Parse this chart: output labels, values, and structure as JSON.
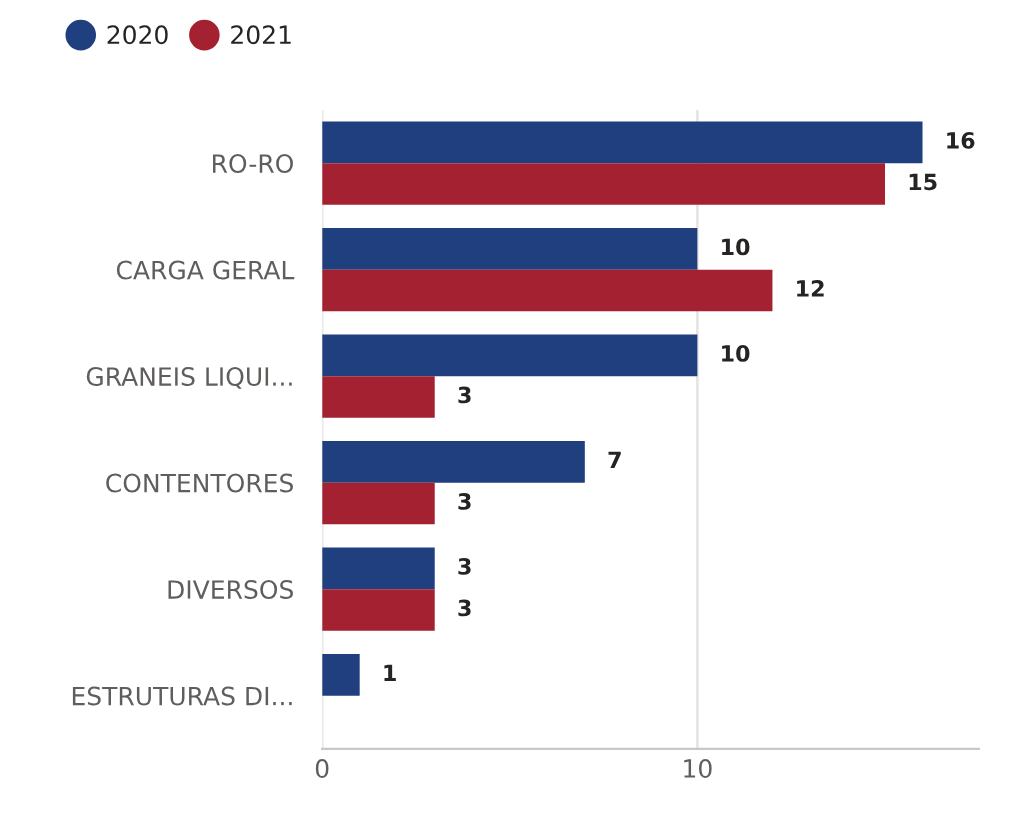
{
  "chart_data": {
    "type": "bar",
    "orientation": "horizontal",
    "categories": [
      "RO-RO",
      "CARGA GERAL",
      "GRANEIS LIQUI...",
      "CONTENTORES",
      "DIVERSOS",
      "ESTRUTURAS DI..."
    ],
    "series": [
      {
        "name": "2020",
        "color": "#203f7e",
        "values": [
          16,
          10,
          10,
          7,
          3,
          1
        ]
      },
      {
        "name": "2021",
        "color": "#a32130",
        "values": [
          15,
          12,
          3,
          3,
          3,
          null
        ]
      }
    ],
    "xlim": [
      0,
      17.5
    ],
    "xticks": [
      0,
      10
    ],
    "grid": "x",
    "legend": "top left",
    "data_labels": true
  }
}
